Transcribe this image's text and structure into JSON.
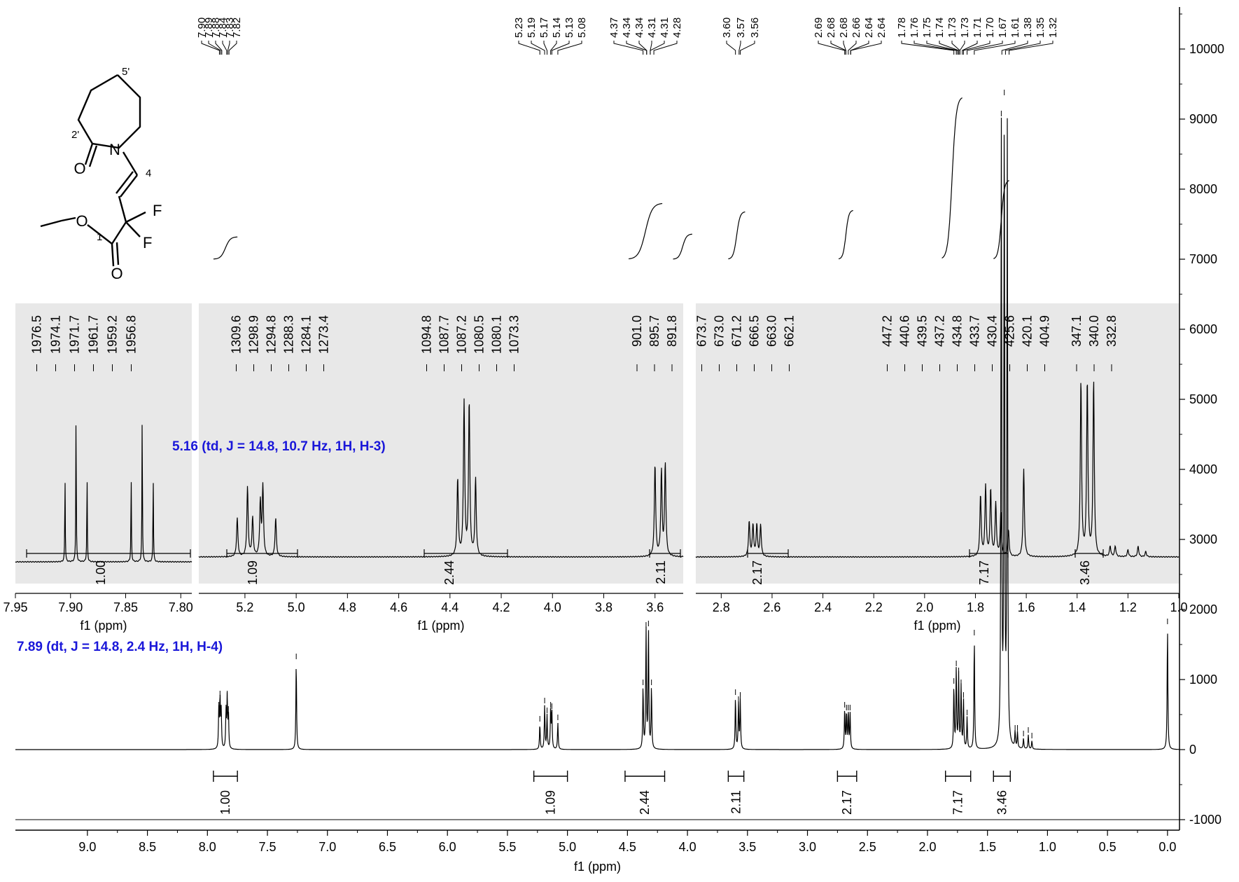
{
  "chart_data": {
    "type": "line",
    "title": "",
    "xlabel": "f1 (ppm)",
    "ylabel": "",
    "x_reversed": true,
    "xlim": [
      9.6,
      -0.1
    ],
    "ylim": [
      -1150,
      10600
    ],
    "x_ticks": [
      "9.0",
      "8.5",
      "8.0",
      "7.5",
      "7.0",
      "6.5",
      "6.0",
      "5.5",
      "5.0",
      "4.5",
      "4.0",
      "3.5",
      "3.0",
      "2.5",
      "2.0",
      "1.5",
      "1.0",
      "0.5",
      "0.0"
    ],
    "y_ticks": [
      "-1000",
      "0",
      "1000",
      "2000",
      "3000",
      "4000",
      "5000",
      "6000",
      "7000",
      "8000",
      "9000",
      "10000"
    ],
    "annotations": [
      "7.89 (dt, J = 14.8, 2.4 Hz, 1H, H-4)",
      "5.16 (td, J = 14.8, 10.7 Hz, 1H, H-3)"
    ],
    "peak_picks_ppm": {
      "group1": [
        "7.90",
        "7.89",
        "7.88",
        "7.84",
        "7.83",
        "7.82"
      ],
      "group2": [
        "5.23",
        "5.19",
        "5.17",
        "5.14",
        "5.13",
        "5.08"
      ],
      "group3": [
        "4.37",
        "4.34",
        "4.34",
        "4.31",
        "4.31",
        "4.28"
      ],
      "group4": [
        "3.60",
        "3.57",
        "3.56"
      ],
      "group5": [
        "2.69",
        "2.68",
        "2.68",
        "2.66",
        "2.64",
        "2.64"
      ],
      "group6": [
        "1.78",
        "1.76",
        "1.75",
        "1.74",
        "1.73",
        "1.73",
        "1.71",
        "1.70",
        "1.67",
        "1.61",
        "1.38",
        "1.35",
        "1.32"
      ]
    },
    "integrals": [
      {
        "from": 7.95,
        "to": 7.75,
        "value": "1.00"
      },
      {
        "from": 5.28,
        "to": 5.0,
        "value": "1.09"
      },
      {
        "from": 4.52,
        "to": 4.19,
        "value": "2.44"
      },
      {
        "from": 3.66,
        "to": 3.53,
        "value": "2.11"
      },
      {
        "from": 2.75,
        "to": 2.59,
        "value": "2.17"
      },
      {
        "from": 1.85,
        "to": 1.64,
        "value": "7.17"
      },
      {
        "from": 1.45,
        "to": 1.31,
        "value": "3.46"
      }
    ],
    "series": [
      {
        "peaks": [
          {
            "x": 7.905,
            "y": 560
          },
          {
            "x": 7.895,
            "y": 720
          },
          {
            "x": 7.885,
            "y": 520
          },
          {
            "x": 7.845,
            "y": 520
          },
          {
            "x": 7.835,
            "y": 720
          },
          {
            "x": 7.825,
            "y": 500
          },
          {
            "x": 7.26,
            "y": 1250
          },
          {
            "x": 5.23,
            "y": 360
          },
          {
            "x": 5.19,
            "y": 620
          },
          {
            "x": 5.17,
            "y": 480
          },
          {
            "x": 5.14,
            "y": 560
          },
          {
            "x": 5.13,
            "y": 540
          },
          {
            "x": 5.08,
            "y": 380
          },
          {
            "x": 4.37,
            "y": 880
          },
          {
            "x": 4.345,
            "y": 1700
          },
          {
            "x": 4.325,
            "y": 1720
          },
          {
            "x": 4.3,
            "y": 880
          },
          {
            "x": 3.6,
            "y": 740
          },
          {
            "x": 3.575,
            "y": 640
          },
          {
            "x": 3.56,
            "y": 700
          },
          {
            "x": 2.69,
            "y": 560
          },
          {
            "x": 2.675,
            "y": 520
          },
          {
            "x": 2.66,
            "y": 520
          },
          {
            "x": 2.645,
            "y": 520
          },
          {
            "x": 1.78,
            "y": 900
          },
          {
            "x": 1.76,
            "y": 1150
          },
          {
            "x": 1.74,
            "y": 1050
          },
          {
            "x": 1.72,
            "y": 880
          },
          {
            "x": 1.7,
            "y": 700
          },
          {
            "x": 1.67,
            "y": 450
          },
          {
            "x": 1.61,
            "y": 1590
          },
          {
            "x": 1.385,
            "y": 9000
          },
          {
            "x": 1.36,
            "y": 9300
          },
          {
            "x": 1.335,
            "y": 8800
          },
          {
            "x": 1.27,
            "y": 230
          },
          {
            "x": 1.25,
            "y": 230
          },
          {
            "x": 1.2,
            "y": 150
          },
          {
            "x": 1.16,
            "y": 200
          },
          {
            "x": 1.13,
            "y": 120
          },
          {
            "x": 0.0,
            "y": 1750
          }
        ]
      }
    ],
    "insets": [
      {
        "xlim": [
          7.95,
          7.79
        ],
        "xlabel": "f1 (ppm)",
        "x_ticks": [
          "7.95",
          "7.90",
          "7.85",
          "7.80"
        ],
        "peak_picks_hz": [
          "1976.5",
          "1974.1",
          "1971.7",
          "1961.7",
          "1959.2",
          "1956.8"
        ],
        "integral": "1.00"
      },
      {
        "xlim": [
          5.38,
          3.49
        ],
        "xlabel": "f1 (ppm)",
        "x_ticks": [
          "5.2",
          "5.0",
          "4.8",
          "4.6",
          "4.4",
          "4.2",
          "4.0",
          "3.8",
          "3.6"
        ],
        "peak_picks_hz": [
          "1309.6",
          "1298.9",
          "1294.8",
          "1288.3",
          "1284.1",
          "1273.4",
          "1094.8",
          "1087.7",
          "1087.2",
          "1080.5",
          "1080.1",
          "1073.3",
          "901.0",
          "895.7",
          "891.8"
        ],
        "integrals": [
          "1.09",
          "2.44",
          "2.11"
        ]
      },
      {
        "xlim": [
          2.9,
          1.0
        ],
        "xlabel": "f1 (ppm)",
        "x_ticks": [
          "2.8",
          "2.6",
          "2.4",
          "2.2",
          "2.0",
          "1.8",
          "1.6",
          "1.4",
          "1.2",
          "1.0"
        ],
        "peak_picks_hz": [
          "673.7",
          "673.0",
          "671.2",
          "666.5",
          "663.0",
          "662.1",
          "447.2",
          "440.6",
          "439.5",
          "437.2",
          "434.8",
          "433.7",
          "430.4",
          "425.6",
          "420.1",
          "404.9",
          "347.1",
          "340.0",
          "332.8"
        ],
        "integrals": [
          "2.17",
          "7.17",
          "3.46"
        ]
      }
    ]
  },
  "structure_labels": {
    "n": "N",
    "o_carbonyl_ring": "O",
    "o_ester": "O",
    "o_carbonyl": "O",
    "f_top": "F",
    "f_bottom": "F",
    "h4": "4",
    "c2p": "2'",
    "c5p": "5'",
    "c1": "1"
  },
  "colors": {
    "annotation": "#1a17d9",
    "inset_bg": "#e8e8e8",
    "trace": "#000000"
  }
}
